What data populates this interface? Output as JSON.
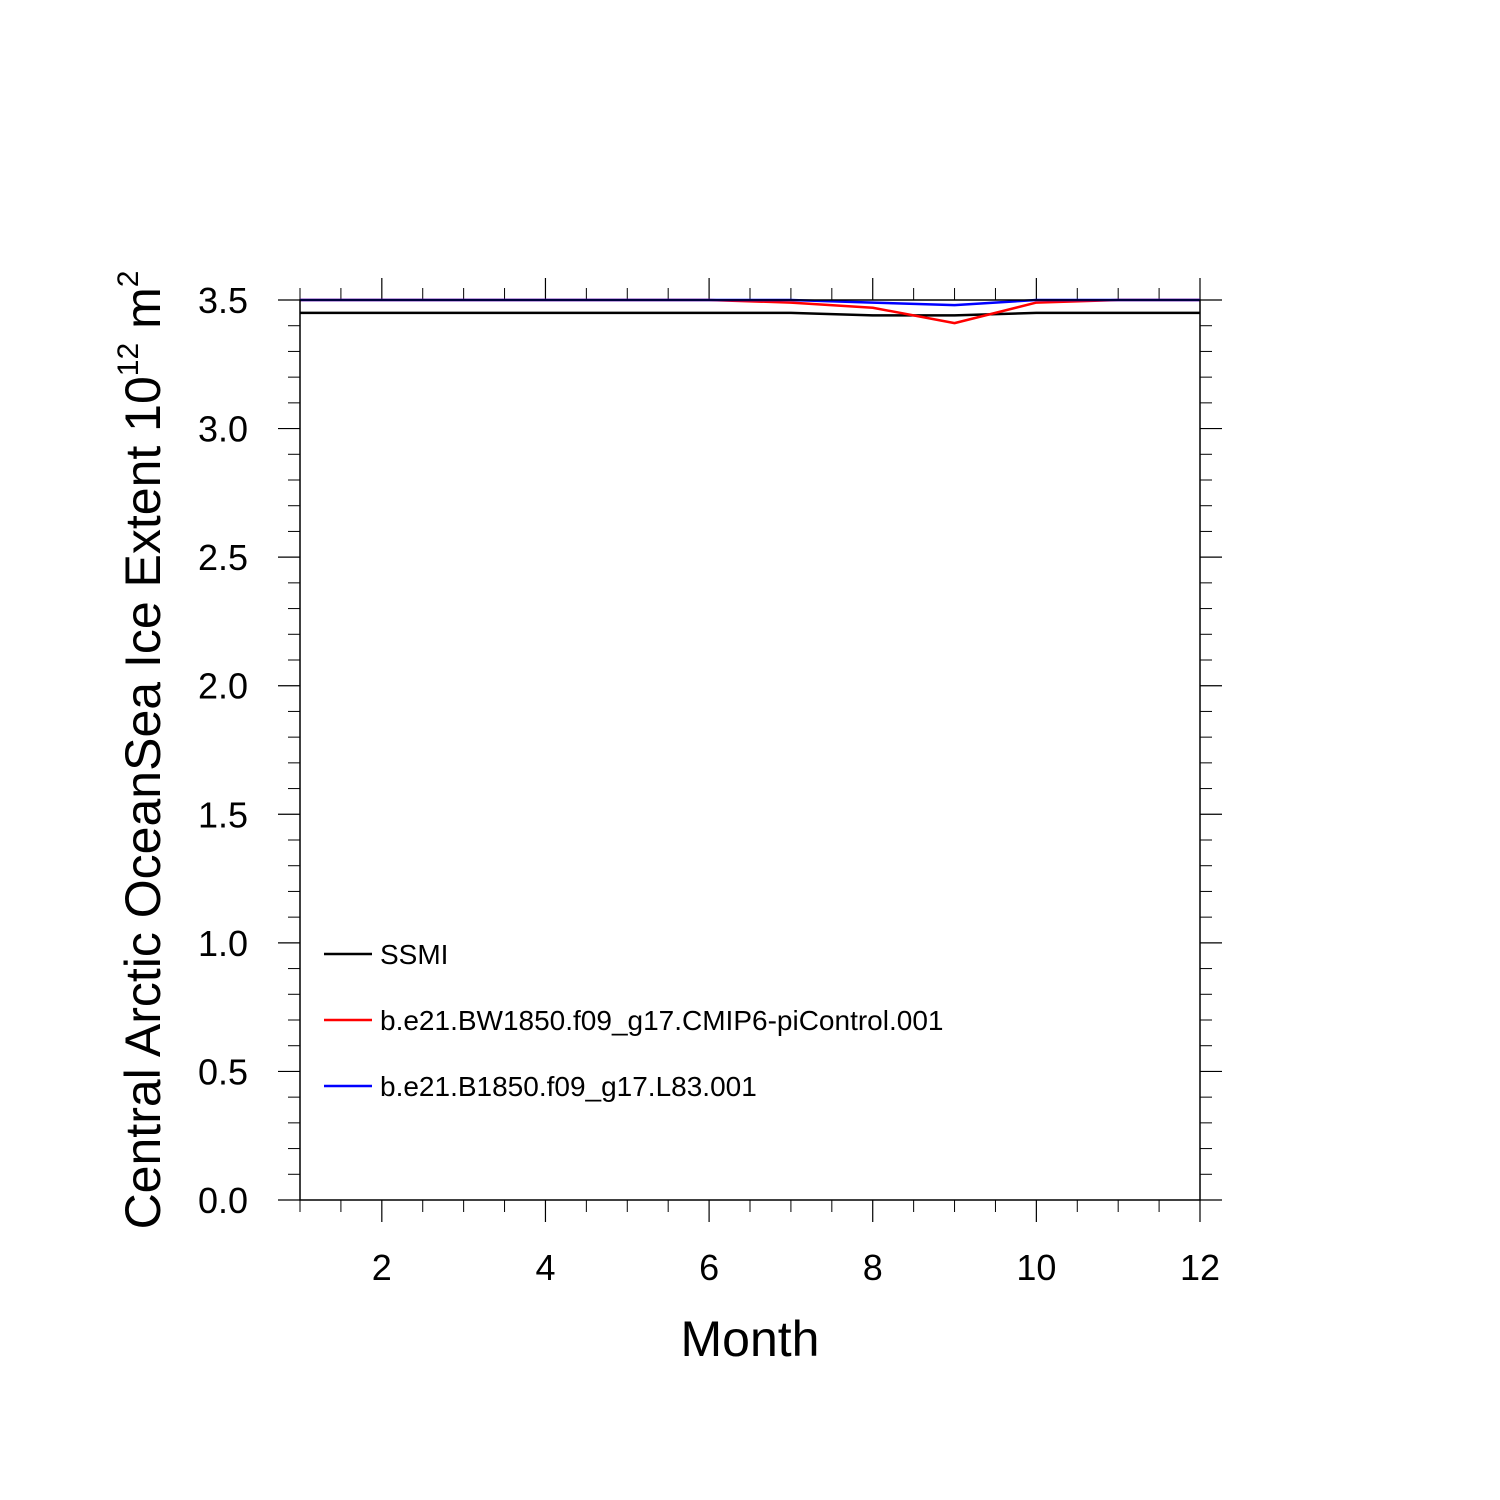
{
  "chart_data": {
    "type": "line",
    "xlabel": "Month",
    "ylabel": {
      "text": "Central Arctic OceanSea Ice Extent 10",
      "exp": "12",
      "unit": " m",
      "unit_exp": "2"
    },
    "xlim": [
      1,
      12
    ],
    "ylim": [
      0,
      3.5
    ],
    "x_ticks": [
      2,
      4,
      6,
      8,
      10,
      12
    ],
    "x_tick_labels": [
      "2",
      "4",
      "6",
      "8",
      "10",
      "12"
    ],
    "y_ticks": [
      0,
      0.5,
      1,
      1.5,
      2,
      2.5,
      3,
      3.5
    ],
    "y_tick_labels": [
      "0.0",
      "0.5",
      "1.0",
      "1.5",
      "2.0",
      "2.5",
      "3.0",
      "3.5"
    ],
    "grid": false,
    "legend_position": "bottom-left",
    "x": [
      1,
      2,
      3,
      4,
      5,
      6,
      7,
      8,
      9,
      10,
      11,
      12
    ],
    "series": [
      {
        "name": "SSMI",
        "color": "#000000",
        "values": [
          3.45,
          3.45,
          3.45,
          3.45,
          3.45,
          3.45,
          3.45,
          3.44,
          3.44,
          3.45,
          3.45,
          3.45
        ]
      },
      {
        "name": "b.e21.BW1850.f09_g17.CMIP6-piControl.001",
        "color": "#ff0000",
        "values": [
          3.5,
          3.5,
          3.5,
          3.5,
          3.5,
          3.5,
          3.49,
          3.47,
          3.41,
          3.49,
          3.5,
          3.5
        ]
      },
      {
        "name": "b.e21.B1850.f09_g17.L83.001",
        "color": "#0000ff",
        "values": [
          3.5,
          3.5,
          3.5,
          3.5,
          3.5,
          3.5,
          3.5,
          3.49,
          3.48,
          3.5,
          3.5,
          3.5
        ]
      }
    ]
  }
}
